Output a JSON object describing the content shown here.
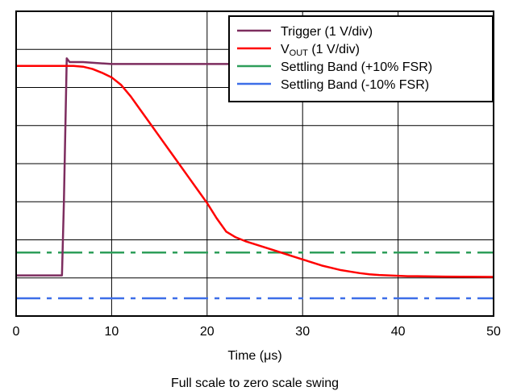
{
  "chart_data": {
    "type": "line",
    "xlabel_prefix": "Time (",
    "xlabel_unit": "μs",
    "xlabel_suffix": ")",
    "caption": "Full scale to zero scale swing",
    "xlim": [
      0,
      50
    ],
    "x_ticks": [
      0,
      10,
      20,
      30,
      40,
      50
    ],
    "ylim": [
      0,
      8
    ],
    "y_gridlines": 8,
    "grid": true,
    "legend_position": "top-right",
    "series": [
      {
        "name": "Trigger (1 V/div)",
        "color": "#7d2d5f",
        "style": "solid",
        "x": [
          0,
          4.8,
          5.0,
          5.3,
          5.6,
          7,
          10,
          20,
          22,
          50
        ],
        "y": [
          0.6,
          0.6,
          2.5,
          6.3,
          6.2,
          6.2,
          6.15,
          6.15,
          6.15,
          6.15
        ]
      },
      {
        "name_prefix": "V",
        "name_sub": "OUT",
        "name_suffix": " (1 V/div)",
        "color": "#ff0000",
        "style": "solid",
        "x": [
          0,
          5,
          6,
          7,
          8,
          9,
          10,
          11,
          12,
          13,
          14,
          15,
          16,
          17,
          18,
          19,
          20,
          21,
          22,
          23,
          24,
          25,
          26,
          27,
          28,
          29,
          30,
          31,
          32,
          33,
          34,
          35,
          36,
          37,
          38,
          39,
          40,
          41,
          42,
          45,
          50
        ],
        "y": [
          6.1,
          6.1,
          6.1,
          6.08,
          6.02,
          5.92,
          5.8,
          5.6,
          5.3,
          4.95,
          4.6,
          4.25,
          3.9,
          3.55,
          3.2,
          2.85,
          2.5,
          2.1,
          1.75,
          1.6,
          1.5,
          1.42,
          1.34,
          1.26,
          1.18,
          1.1,
          1.02,
          0.94,
          0.86,
          0.8,
          0.74,
          0.7,
          0.66,
          0.63,
          0.61,
          0.6,
          0.59,
          0.58,
          0.58,
          0.57,
          0.56
        ]
      },
      {
        "name": "Settling Band (+10% FSR)",
        "color": "#2e9e5a",
        "style": "dash-dot",
        "x": [
          0,
          50
        ],
        "y": [
          1.2,
          1.2
        ]
      },
      {
        "name": "Settling Band (-10% FSR)",
        "color": "#3d6ee8",
        "style": "dash-dot",
        "x": [
          0,
          50
        ],
        "y": [
          0.0,
          0.0
        ]
      }
    ]
  }
}
